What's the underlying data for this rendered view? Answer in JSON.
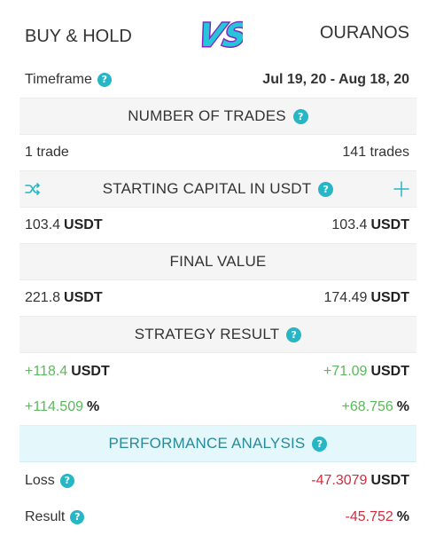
{
  "header": {
    "left_title": "BUY & HOLD",
    "right_title": "OURANOS",
    "vs_text": "VS"
  },
  "timeframe": {
    "label": "Timeframe",
    "value": "Jul 19, 20 - Aug 18, 20"
  },
  "sections": {
    "trades": "NUMBER OF TRADES",
    "capital": "STARTING CAPITAL IN USDT",
    "final": "FINAL VALUE",
    "strategy": "STRATEGY RESULT",
    "performance": "PERFORMANCE ANALYSIS"
  },
  "trades": {
    "left": "1 trade",
    "right": "141 trades"
  },
  "capital": {
    "left_value": "103.4",
    "left_unit": "USDT",
    "right_value": "103.4",
    "right_unit": "USDT"
  },
  "final": {
    "left_value": "221.8",
    "left_unit": "USDT",
    "right_value": "174.49",
    "right_unit": "USDT"
  },
  "strategy": {
    "abs_left_value": "+118.4",
    "abs_left_unit": "USDT",
    "abs_right_value": "+71.09",
    "abs_right_unit": "USDT",
    "pct_left_value": "+114.509",
    "pct_left_unit": "%",
    "pct_right_value": "+68.756",
    "pct_right_unit": "%"
  },
  "performance": {
    "loss_label": "Loss",
    "loss_value": "-47.3079",
    "loss_unit": "USDT",
    "result_label": "Result",
    "result_value": "-45.752",
    "result_unit": "%"
  },
  "icons": {
    "help": "?",
    "shuffle": "shuffle-icon",
    "plus": "plus-icon"
  },
  "colors": {
    "accent": "#26b6c6",
    "positive": "#5cb85c",
    "negative": "#d62c3d",
    "vs_fill": "#26c6da",
    "vs_outline": "#7b2cbf"
  }
}
